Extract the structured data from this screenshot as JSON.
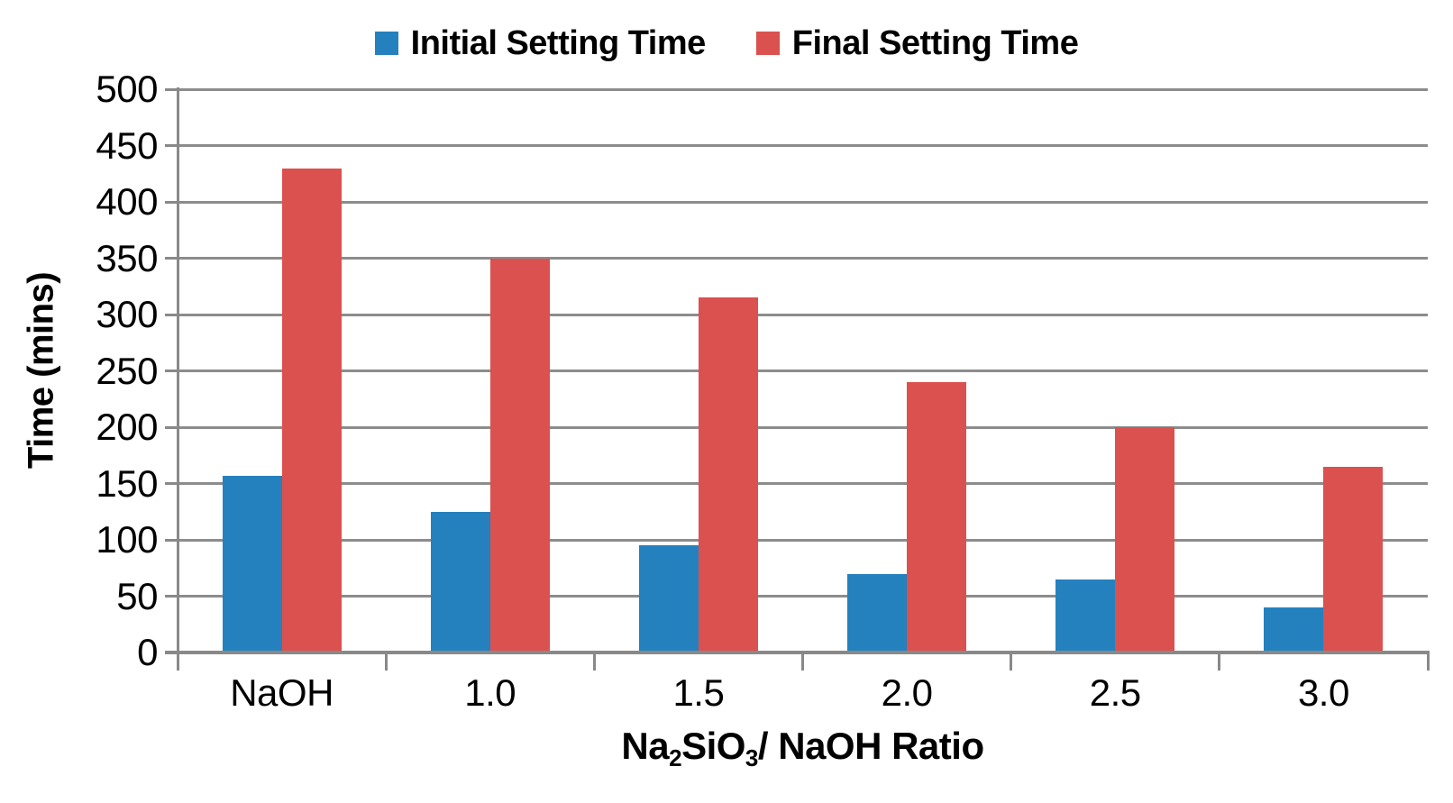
{
  "chart_data": {
    "type": "bar",
    "categories": [
      "NaOH",
      "1.0",
      "1.5",
      "2.0",
      "2.5",
      "3.0"
    ],
    "series": [
      {
        "name": "Initial Setting Time",
        "color": "#2581BE",
        "values": [
          157,
          125,
          95,
          70,
          65,
          40
        ]
      },
      {
        "name": "Final Setting Time",
        "color": "#DB514F",
        "values": [
          430,
          350,
          315,
          240,
          200,
          165
        ]
      }
    ],
    "xlabel": "Na2SiO3/ NaOH Ratio",
    "xlabel_parts": [
      {
        "text": "Na",
        "sub": false
      },
      {
        "text": "2",
        "sub": true
      },
      {
        "text": "SiO",
        "sub": false
      },
      {
        "text": "3",
        "sub": true
      },
      {
        "text": "/ NaOH Ratio",
        "sub": false
      }
    ],
    "ylabel": "Time (mins)",
    "ylim": [
      0,
      500
    ],
    "ytick_step": 50,
    "ytick_labels": [
      "0",
      "50",
      "100",
      "150",
      "200",
      "250",
      "300",
      "350",
      "400",
      "450",
      "500"
    ],
    "grid": true,
    "legend_position": "top",
    "colors": {
      "grid": "#8C8C8C",
      "axis": "#898989",
      "text": "#000000",
      "background": "#FFFFFF"
    }
  }
}
